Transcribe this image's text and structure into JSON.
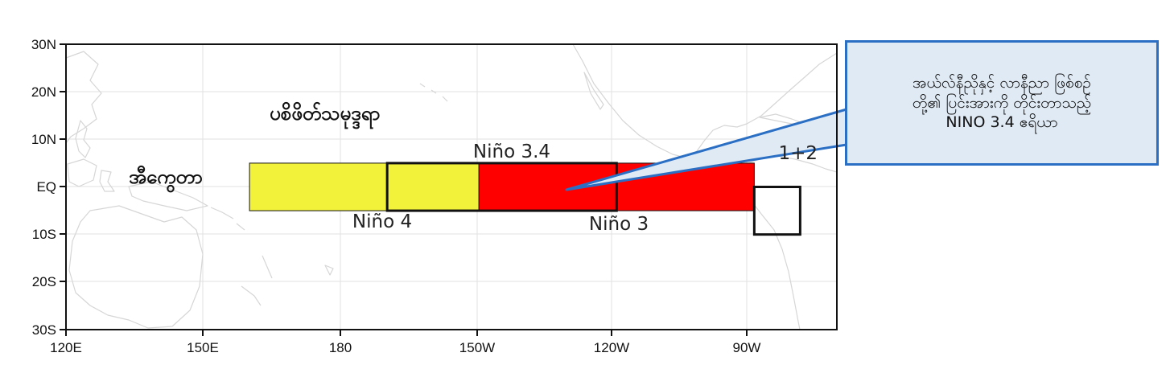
{
  "map": {
    "lat_ticks": [
      "30N",
      "20N",
      "10N",
      "EQ",
      "10S",
      "20S",
      "30S"
    ],
    "lon_ticks": [
      "120E",
      "150E",
      "180",
      "150W",
      "120W",
      "90W"
    ],
    "colors": {
      "nino4_fill": "#f2f23a",
      "nino3_fill": "#ff0000",
      "box_border": "#111111",
      "coastline": "#d6d6d6",
      "grid": "#e2e2e2"
    },
    "regions": [
      {
        "label": "Niño 4",
        "lon_range": [
          "160E",
          "150W"
        ],
        "lat_range": [
          "5N",
          "5S"
        ],
        "fill": "yellow"
      },
      {
        "label": "Niño 3.4",
        "lon_range": [
          "170W",
          "120W"
        ],
        "lat_range": [
          "5N",
          "5S"
        ],
        "fill": "outline"
      },
      {
        "label": "Niño 3",
        "lon_range": [
          "150W",
          "90W"
        ],
        "lat_range": [
          "5N",
          "5S"
        ],
        "fill": "red"
      },
      {
        "label": "1+2",
        "lon_range": [
          "90W",
          "80W"
        ],
        "lat_range": [
          "0",
          "10S"
        ],
        "fill": "none"
      }
    ],
    "labels": {
      "pacific_ocean": "ပစိဖိတ်သမုဒ္ဒရာ",
      "equator": "အီကွေတာ"
    }
  },
  "callout": {
    "lines": [
      "အယ်လ်နီညိုနှင့် လာနီညာ ဖြစ်စဉ်",
      "တို့၏ ပြင်းအားကို တိုင်းတာသည့်",
      "NINO 3.4 ဧရိယာ"
    ],
    "border_color": "#2a6fc4",
    "fill_color": "#dfeaf5"
  }
}
